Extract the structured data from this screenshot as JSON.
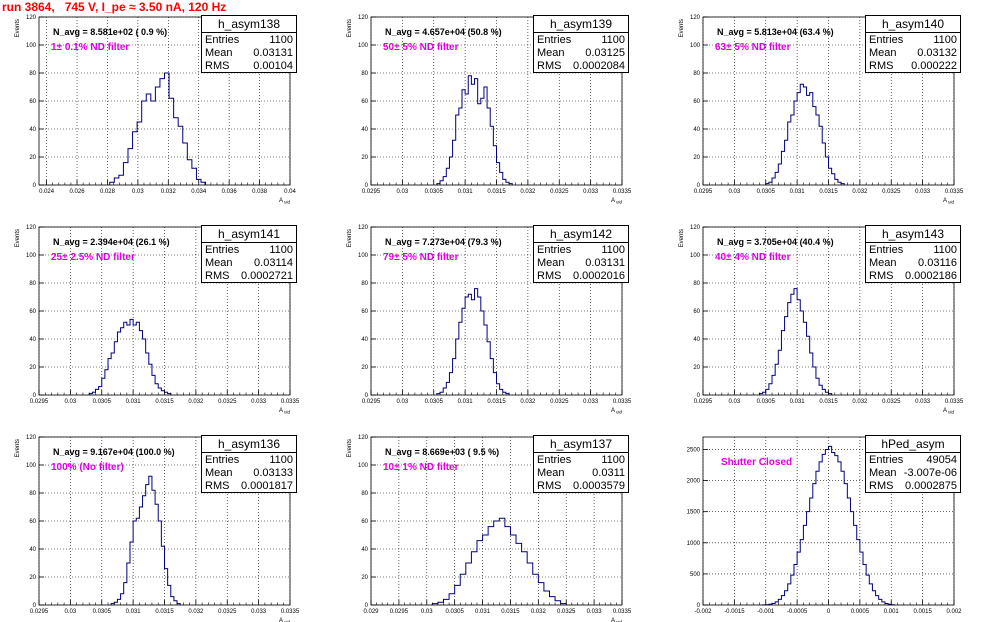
{
  "run_title": "run 3864,   745 V, I_pe ≈ 3.50 nA, 120 Hz",
  "colors": {
    "histogram": "#000080",
    "title": "#ff0000",
    "annotation": "#e000e0",
    "grid": "#000000"
  },
  "chart_data": [
    {
      "type": "histogram",
      "name": "h_asym138",
      "entries": "1100",
      "mean": "0.03131",
      "rms": "0.00104",
      "n_avg": "N_avg = 8.581e+02 ( 0.9 %)",
      "filter_label": "1± 0.1% ND filter",
      "ylabel": "Events",
      "xlabel": "A_uid",
      "grid": true,
      "xlim": [
        0.0235,
        0.04
      ],
      "ylim": [
        0,
        120
      ],
      "xticks": [
        0.024,
        0.026,
        0.028,
        0.03,
        0.032,
        0.034,
        0.036,
        0.038,
        0.04
      ],
      "xtick_labels": [
        "0.024",
        "0.026",
        "0.028",
        "0.03",
        "0.032",
        "0.034",
        "0.036",
        "0.038",
        "0.04"
      ],
      "yticks": [
        0,
        20,
        40,
        60,
        80,
        100,
        120
      ],
      "ytick_labels": [
        "0",
        "20",
        "40",
        "60",
        "80",
        "100",
        "120"
      ],
      "bins_start": 0.02815,
      "bin_width": 0.0003,
      "counts": [
        2,
        5,
        7,
        16,
        26,
        38,
        45,
        60,
        65,
        60,
        70,
        76,
        80,
        62,
        48,
        42,
        30,
        18,
        12,
        4,
        2
      ]
    },
    {
      "type": "histogram",
      "name": "h_asym139",
      "entries": "1100",
      "mean": "0.03125",
      "rms": "0.0002084",
      "n_avg": "N_avg = 4.657e+04 (50.8 %)",
      "filter_label": "50± 5% ND filter",
      "ylabel": "Events",
      "xlabel": "A_uid",
      "grid": true,
      "xlim": [
        0.0295,
        0.0335
      ],
      "ylim": [
        0,
        120
      ],
      "xticks": [
        0.0295,
        0.03,
        0.0305,
        0.031,
        0.0315,
        0.032,
        0.0325,
        0.033,
        0.0335
      ],
      "xtick_labels": [
        "0.0295",
        "0.03",
        "0.0305",
        "0.031",
        "0.0315",
        "0.032",
        "0.0325",
        "0.033",
        "0.0335"
      ],
      "yticks": [
        0,
        20,
        40,
        60,
        80,
        100,
        120
      ],
      "ytick_labels": [
        "0",
        "20",
        "40",
        "60",
        "80",
        "100",
        "120"
      ],
      "bins_start": 0.03055,
      "bin_width": 5e-05,
      "counts": [
        1,
        3,
        6,
        12,
        20,
        32,
        50,
        55,
        68,
        65,
        78,
        72,
        76,
        58,
        62,
        70,
        55,
        42,
        28,
        16,
        9,
        4,
        2,
        1
      ]
    },
    {
      "type": "histogram",
      "name": "h_asym140",
      "entries": "1100",
      "mean": "0.03132",
      "rms": "0.000222",
      "n_avg": "N_avg = 5.813e+04 (63.4 %)",
      "filter_label": "63± 5% ND filter",
      "ylabel": "Events",
      "xlabel": "A_uid",
      "grid": true,
      "xlim": [
        0.0295,
        0.0335
      ],
      "ylim": [
        0,
        120
      ],
      "xticks": [
        0.0295,
        0.03,
        0.0305,
        0.031,
        0.0315,
        0.032,
        0.0325,
        0.033,
        0.0335
      ],
      "xtick_labels": [
        "0.0295",
        "0.03",
        "0.0305",
        "0.031",
        "0.0315",
        "0.032",
        "0.0325",
        "0.033",
        "0.0335"
      ],
      "yticks": [
        0,
        20,
        40,
        60,
        80,
        100,
        120
      ],
      "ytick_labels": [
        "0",
        "20",
        "40",
        "60",
        "80",
        "100",
        "120"
      ],
      "bins_start": 0.0305,
      "bin_width": 5e-05,
      "counts": [
        1,
        2,
        5,
        9,
        15,
        24,
        32,
        45,
        50,
        60,
        66,
        72,
        70,
        64,
        66,
        56,
        50,
        42,
        30,
        20,
        12,
        8,
        4,
        2,
        1
      ]
    },
    {
      "type": "histogram",
      "name": "h_asym141",
      "entries": "1100",
      "mean": "0.03114",
      "rms": "0.0002721",
      "n_avg": "N_avg = 2.394e+04 (26.1 %)",
      "filter_label": "25± 2.5% ND filter",
      "ylabel": "Events",
      "xlabel": "A_uid",
      "grid": true,
      "xlim": [
        0.0295,
        0.0335
      ],
      "ylim": [
        0,
        120
      ],
      "xticks": [
        0.0295,
        0.03,
        0.0305,
        0.031,
        0.0315,
        0.032,
        0.0325,
        0.033,
        0.0335
      ],
      "xtick_labels": [
        "0.0295",
        "0.03",
        "0.0305",
        "0.031",
        "0.0315",
        "0.032",
        "0.0325",
        "0.033",
        "0.0335"
      ],
      "yticks": [
        0,
        20,
        40,
        60,
        80,
        100,
        120
      ],
      "ytick_labels": [
        "0",
        "20",
        "40",
        "60",
        "80",
        "100",
        "120"
      ],
      "bins_start": 0.0303,
      "bin_width": 5e-05,
      "counts": [
        1,
        2,
        4,
        6,
        12,
        18,
        26,
        30,
        38,
        45,
        48,
        52,
        50,
        54,
        50,
        52,
        46,
        40,
        30,
        22,
        14,
        8,
        5,
        3,
        2,
        1
      ]
    },
    {
      "type": "histogram",
      "name": "h_asym142",
      "entries": "1100",
      "mean": "0.03131",
      "rms": "0.0002016",
      "n_avg": "N_avg = 7.273e+04 (79.3 %)",
      "filter_label": "79± 5% ND filter",
      "ylabel": "Events",
      "xlabel": "A_uid",
      "grid": true,
      "xlim": [
        0.0295,
        0.0335
      ],
      "ylim": [
        0,
        120
      ],
      "xticks": [
        0.0295,
        0.03,
        0.0305,
        0.031,
        0.0315,
        0.032,
        0.0325,
        0.033,
        0.0335
      ],
      "xtick_labels": [
        "0.0295",
        "0.03",
        "0.0305",
        "0.031",
        "0.0315",
        "0.032",
        "0.0325",
        "0.033",
        "0.0335"
      ],
      "yticks": [
        0,
        20,
        40,
        60,
        80,
        100,
        120
      ],
      "ytick_labels": [
        "0",
        "20",
        "40",
        "60",
        "80",
        "100",
        "120"
      ],
      "bins_start": 0.03055,
      "bin_width": 5e-05,
      "counts": [
        1,
        2,
        5,
        9,
        16,
        26,
        40,
        52,
        62,
        70,
        72,
        68,
        76,
        70,
        60,
        50,
        38,
        26,
        16,
        8,
        4,
        2,
        1
      ]
    },
    {
      "type": "histogram",
      "name": "h_asym143",
      "entries": "1100",
      "mean": "0.03116",
      "rms": "0.0002186",
      "n_avg": "N_avg = 3.705e+04 (40.4 %)",
      "filter_label": "40± 4% ND filter",
      "ylabel": "Events",
      "xlabel": "A_uid",
      "grid": true,
      "xlim": [
        0.0295,
        0.0335
      ],
      "ylim": [
        0,
        120
      ],
      "xticks": [
        0.0295,
        0.03,
        0.0305,
        0.031,
        0.0315,
        0.032,
        0.0325,
        0.033,
        0.0335
      ],
      "xtick_labels": [
        "0.0295",
        "0.03",
        "0.0305",
        "0.031",
        "0.0315",
        "0.032",
        "0.0325",
        "0.033",
        "0.0335"
      ],
      "yticks": [
        0,
        20,
        40,
        60,
        80,
        100,
        120
      ],
      "ytick_labels": [
        "0",
        "20",
        "40",
        "60",
        "80",
        "100",
        "120"
      ],
      "bins_start": 0.0304,
      "bin_width": 5e-05,
      "counts": [
        1,
        2,
        4,
        8,
        14,
        22,
        32,
        46,
        56,
        66,
        72,
        76,
        68,
        60,
        52,
        42,
        30,
        20,
        12,
        7,
        4,
        2,
        1
      ]
    },
    {
      "type": "histogram",
      "name": "h_asym136",
      "entries": "1100",
      "mean": "0.03133",
      "rms": "0.0001817",
      "n_avg": "N_avg = 9.167e+04 (100.0 %)",
      "filter_label": "100% (No filter)",
      "ylabel": "Events",
      "xlabel": "A_uid",
      "grid": true,
      "xlim": [
        0.0295,
        0.0335
      ],
      "ylim": [
        0,
        120
      ],
      "xticks": [
        0.0295,
        0.03,
        0.0305,
        0.031,
        0.0315,
        0.032,
        0.0325,
        0.033,
        0.0335
      ],
      "xtick_labels": [
        "0.0295",
        "0.03",
        "0.0305",
        "0.031",
        "0.0315",
        "0.032",
        "0.0325",
        "0.033",
        "0.0335"
      ],
      "yticks": [
        0,
        20,
        40,
        60,
        80,
        100,
        120
      ],
      "ytick_labels": [
        "0",
        "20",
        "40",
        "60",
        "80",
        "100",
        "120"
      ],
      "bins_start": 0.03065,
      "bin_width": 5e-05,
      "counts": [
        1,
        2,
        4,
        8,
        16,
        30,
        45,
        60,
        62,
        70,
        78,
        86,
        92,
        82,
        72,
        60,
        42,
        26,
        14,
        6,
        3,
        1
      ]
    },
    {
      "type": "histogram",
      "name": "h_asym137",
      "entries": "1100",
      "mean": "0.0311",
      "rms": "0.0003579",
      "n_avg": "N_avg = 8.669e+03 ( 9.5 %)",
      "filter_label": "10± 1% ND filter",
      "ylabel": "Events",
      "xlabel": "A_uid",
      "grid": true,
      "xlim": [
        0.029,
        0.0335
      ],
      "ylim": [
        0,
        120
      ],
      "xticks": [
        0.029,
        0.0295,
        0.03,
        0.0305,
        0.031,
        0.0315,
        0.032,
        0.0325,
        0.033,
        0.0335
      ],
      "xtick_labels": [
        "0.029",
        "0.0295",
        "0.03",
        "0.0305",
        "0.031",
        "0.0315",
        "0.032",
        "0.0325",
        "0.033",
        "0.0335"
      ],
      "yticks": [
        0,
        20,
        40,
        60,
        80,
        100,
        120
      ],
      "ytick_labels": [
        "0",
        "20",
        "40",
        "60",
        "80",
        "100",
        "120"
      ],
      "bins_start": 0.0301,
      "bin_width": 0.0001,
      "counts": [
        1,
        2,
        4,
        8,
        14,
        22,
        30,
        38,
        46,
        50,
        56,
        60,
        62,
        56,
        50,
        44,
        38,
        30,
        22,
        16,
        10,
        6,
        3,
        1
      ]
    },
    {
      "type": "histogram",
      "name": "hPed_asym",
      "entries": "49054",
      "mean": "-3.007e-06",
      "rms": "0.0002875",
      "n_avg": "",
      "filter_label": "Shutter Closed",
      "ylabel": "",
      "xlabel": "",
      "grid": true,
      "xlim": [
        -0.002,
        0.002
      ],
      "ylim": [
        0,
        2700
      ],
      "xticks": [
        -0.002,
        -0.0015,
        -0.001,
        -0.0005,
        0,
        0.0005,
        0.001,
        0.0015,
        0.002
      ],
      "xtick_labels": [
        "-0.002",
        "-0.0015",
        "-0.001",
        "-0.0005",
        "0",
        "0.0005",
        "0.001",
        "0.0015",
        "0.002"
      ],
      "yticks": [
        0,
        500,
        1000,
        1500,
        2000,
        2500
      ],
      "ytick_labels": [
        "0",
        "500",
        "1000",
        "1500",
        "2000",
        "2500"
      ],
      "bins_start": -0.00105,
      "bin_width": 5e-05,
      "counts": [
        2,
        5,
        12,
        25,
        50,
        90,
        150,
        230,
        340,
        480,
        650,
        850,
        1050,
        1280,
        1500,
        1720,
        1950,
        2150,
        2300,
        2420,
        2500,
        2550,
        2450,
        2400,
        2300,
        2150,
        1950,
        1720,
        1500,
        1280,
        1050,
        850,
        650,
        480,
        340,
        230,
        150,
        90,
        50,
        25,
        12,
        5
      ]
    }
  ]
}
